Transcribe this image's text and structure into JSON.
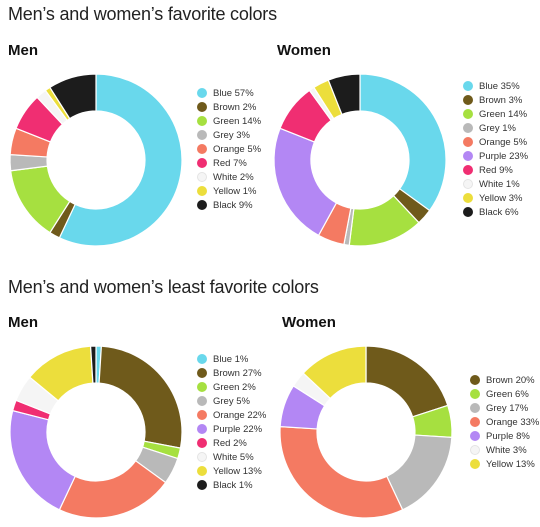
{
  "sections": [
    {
      "title": "Men’s and women’s favorite colors"
    },
    {
      "title": "Men’s and women’s least favorite colors"
    }
  ],
  "chart_data": [
    {
      "type": "pie",
      "donut": true,
      "section": "Men’s and women’s favorite colors",
      "title": "Men",
      "slices": [
        {
          "label": "Blue",
          "value": 57,
          "display": "Blue 57%",
          "color": "#69d8ec"
        },
        {
          "label": "Brown",
          "value": 2,
          "display": "Brown 2%",
          "color": "#6f5a1b"
        },
        {
          "label": "Green",
          "value": 14,
          "display": "Green 14%",
          "color": "#a6e040"
        },
        {
          "label": "Grey",
          "value": 3,
          "display": "Grey 3%",
          "color": "#b9b9b9"
        },
        {
          "label": "Orange",
          "value": 5,
          "display": "Orange 5%",
          "color": "#f47a62"
        },
        {
          "label": "Red",
          "value": 7,
          "display": "Red 7%",
          "color": "#f02e72"
        },
        {
          "label": "White",
          "value": 2,
          "display": "White 2%",
          "color": "#f5f5f5"
        },
        {
          "label": "Yellow",
          "value": 1,
          "display": "Yellow 1%",
          "color": "#ecde3c"
        },
        {
          "label": "Black",
          "value": 9,
          "display": "Black 9%",
          "color": "#1c1c1c"
        }
      ]
    },
    {
      "type": "pie",
      "donut": true,
      "section": "Men’s and women’s favorite colors",
      "title": "Women",
      "slices": [
        {
          "label": "Blue",
          "value": 35,
          "display": "Blue 35%",
          "color": "#69d8ec"
        },
        {
          "label": "Brown",
          "value": 3,
          "display": "Brown 3%",
          "color": "#6f5a1b"
        },
        {
          "label": "Green",
          "value": 14,
          "display": "Green 14%",
          "color": "#a6e040"
        },
        {
          "label": "Grey",
          "value": 1,
          "display": "Grey 1%",
          "color": "#b9b9b9"
        },
        {
          "label": "Orange",
          "value": 5,
          "display": "Orange 5%",
          "color": "#f47a62"
        },
        {
          "label": "Purple",
          "value": 23,
          "display": "Purple 23%",
          "color": "#b387f4"
        },
        {
          "label": "Red",
          "value": 9,
          "display": "Red 9%",
          "color": "#f02e72"
        },
        {
          "label": "White",
          "value": 1,
          "display": "White 1%",
          "color": "#f5f5f5"
        },
        {
          "label": "Yellow",
          "value": 3,
          "display": "Yellow 3%",
          "color": "#ecde3c"
        },
        {
          "label": "Black",
          "value": 6,
          "display": "Black 6%",
          "color": "#1c1c1c"
        }
      ]
    },
    {
      "type": "pie",
      "donut": true,
      "section": "Men’s and women’s least favorite colors",
      "title": "Men",
      "slices": [
        {
          "label": "Blue",
          "value": 1,
          "display": "Blue 1%",
          "color": "#69d8ec"
        },
        {
          "label": "Brown",
          "value": 27,
          "display": "Brown 27%",
          "color": "#6f5a1b"
        },
        {
          "label": "Green",
          "value": 2,
          "display": "Green 2%",
          "color": "#a6e040"
        },
        {
          "label": "Grey",
          "value": 5,
          "display": "Grey 5%",
          "color": "#b9b9b9"
        },
        {
          "label": "Orange",
          "value": 22,
          "display": "Orange 22%",
          "color": "#f47a62"
        },
        {
          "label": "Purple",
          "value": 22,
          "display": "Purple 22%",
          "color": "#b387f4"
        },
        {
          "label": "Red",
          "value": 2,
          "display": "Red 2%",
          "color": "#f02e72"
        },
        {
          "label": "White",
          "value": 5,
          "display": "White 5%",
          "color": "#f5f5f5"
        },
        {
          "label": "Yellow",
          "value": 13,
          "display": "Yellow 13%",
          "color": "#ecde3c"
        },
        {
          "label": "Black",
          "value": 1,
          "display": "Black 1%",
          "color": "#1c1c1c"
        }
      ]
    },
    {
      "type": "pie",
      "donut": true,
      "section": "Men’s and women’s least favorite colors",
      "title": "Women",
      "slices": [
        {
          "label": "Brown",
          "value": 20,
          "display": "Brown 20%",
          "color": "#6f5a1b"
        },
        {
          "label": "Green",
          "value": 6,
          "display": "Green 6%",
          "color": "#a6e040"
        },
        {
          "label": "Grey",
          "value": 17,
          "display": "Grey 17%",
          "color": "#b9b9b9"
        },
        {
          "label": "Orange",
          "value": 33,
          "display": "Orange 33%",
          "color": "#f47a62"
        },
        {
          "label": "Purple",
          "value": 8,
          "display": "Purple 8%",
          "color": "#b387f4"
        },
        {
          "label": "White",
          "value": 3,
          "display": "White 3%",
          "color": "#f5f5f5"
        },
        {
          "label": "Yellow",
          "value": 13,
          "display": "Yellow 13%",
          "color": "#ecde3c"
        }
      ]
    }
  ]
}
